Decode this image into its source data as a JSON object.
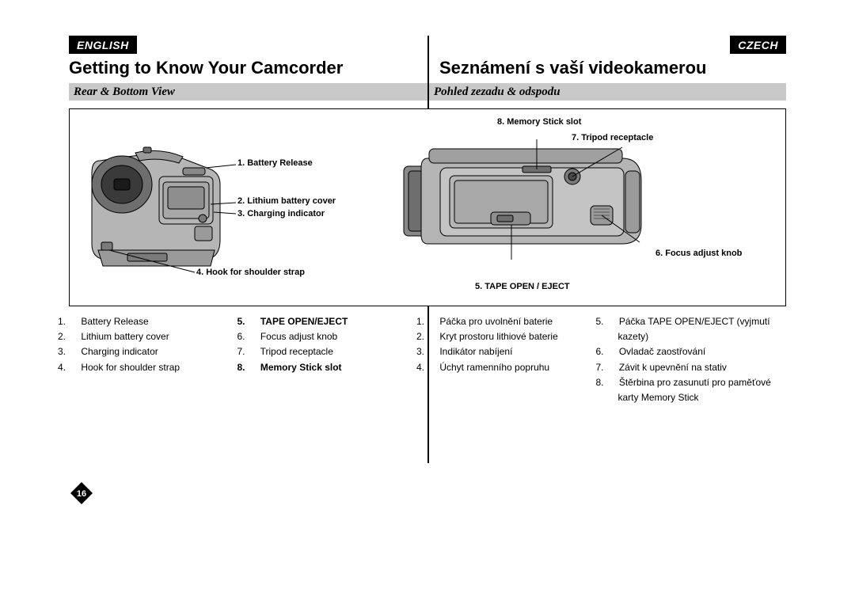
{
  "lang": {
    "left": "ENGLISH",
    "right": "CZECH"
  },
  "titles": {
    "left": "Getting to Know Your Camcorder",
    "right": "Seznámení s vaší videokamerou"
  },
  "subtitles": {
    "left": "Rear & Bottom View",
    "right": "Pohled zezadu & odspodu"
  },
  "callouts": {
    "c1": "1. Battery Release",
    "c2": "2. Lithium battery cover",
    "c3": "3. Charging indicator",
    "c4": "4. Hook for shoulder strap",
    "c5": "5. TAPE OPEN / EJECT",
    "c6": "6. Focus adjust knob",
    "c7": "7. Tripod receptacle",
    "c8": "8. Memory Stick slot"
  },
  "list_en_a": [
    {
      "n": "1.",
      "t": "Battery Release"
    },
    {
      "n": "2.",
      "t": "Lithium battery cover"
    },
    {
      "n": "3.",
      "t": "Charging indicator"
    },
    {
      "n": "4.",
      "t": "Hook for shoulder strap"
    }
  ],
  "list_en_b": [
    {
      "n": "5.",
      "t": "TAPE OPEN/EJECT",
      "bold": true
    },
    {
      "n": "6.",
      "t": "Focus adjust knob"
    },
    {
      "n": "7.",
      "t": "Tripod receptacle"
    },
    {
      "n": "8.",
      "t": "Memory Stick slot",
      "bold": true
    }
  ],
  "list_cz_a": [
    {
      "n": "1.",
      "t": "Páčka pro uvolnění baterie"
    },
    {
      "n": "2.",
      "t": "Kryt prostoru lithiové baterie"
    },
    {
      "n": "3.",
      "t": "Indikátor nabíjení"
    },
    {
      "n": "4.",
      "t": "Úchyt ramenního popruhu"
    }
  ],
  "list_cz_b": [
    {
      "n": "5.",
      "t": "Páčka TAPE OPEN/EJECT (vyjmutí kazety)"
    },
    {
      "n": "6.",
      "t": "Ovladač zaostřování"
    },
    {
      "n": "7.",
      "t": "Závit k upevnění na stativ"
    },
    {
      "n": "8.",
      "t": "Štěrbina pro zasunutí pro paměťové karty Memory Stick"
    }
  ],
  "colors": {
    "cam_body": "#b5b5b5",
    "cam_dark": "#6e6e6e",
    "cam_shadow": "#888888",
    "stroke": "#000000"
  },
  "page_number": "16"
}
